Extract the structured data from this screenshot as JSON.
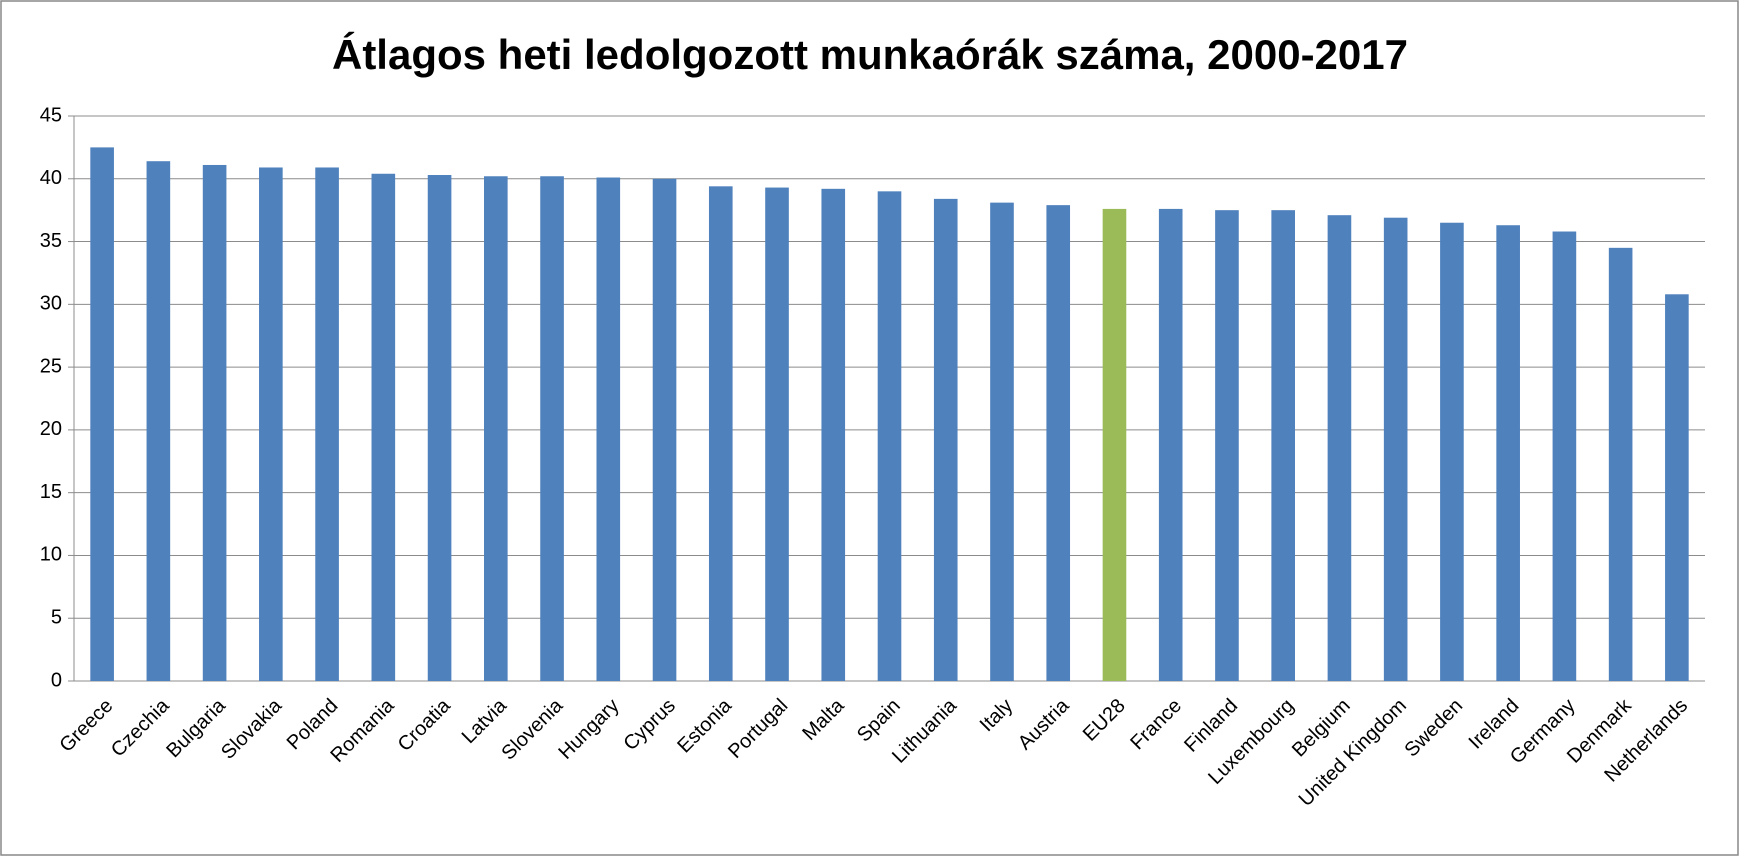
{
  "chart_data": {
    "type": "bar",
    "title": "Átlagos heti ledolgozott munkaórák száma, 2000-2017",
    "categories": [
      "Greece",
      "Czechia",
      "Bulgaria",
      "Slovakia",
      "Poland",
      "Romania",
      "Croatia",
      "Latvia",
      "Slovenia",
      "Hungary",
      "Cyprus",
      "Estonia",
      "Portugal",
      "Malta",
      "Spain",
      "Lithuania",
      "Italy",
      "Austria",
      "EU28",
      "France",
      "Finland",
      "Luxembourg",
      "Belgium",
      "United Kingdom",
      "Sweden",
      "Ireland",
      "Germany",
      "Denmark",
      "Netherlands"
    ],
    "values": [
      42.5,
      41.4,
      41.1,
      40.9,
      40.9,
      40.4,
      40.3,
      40.2,
      40.2,
      40.1,
      40.0,
      39.4,
      39.3,
      39.2,
      39.0,
      38.4,
      38.1,
      37.9,
      37.6,
      37.6,
      37.5,
      37.5,
      37.1,
      36.9,
      36.5,
      36.3,
      35.8,
      34.5,
      30.8
    ],
    "colors": [
      "#4f81bd",
      "#4f81bd",
      "#4f81bd",
      "#4f81bd",
      "#4f81bd",
      "#4f81bd",
      "#4f81bd",
      "#4f81bd",
      "#4f81bd",
      "#4f81bd",
      "#4f81bd",
      "#4f81bd",
      "#4f81bd",
      "#4f81bd",
      "#4f81bd",
      "#4f81bd",
      "#4f81bd",
      "#4f81bd",
      "#9bbb59",
      "#4f81bd",
      "#4f81bd",
      "#4f81bd",
      "#4f81bd",
      "#4f81bd",
      "#4f81bd",
      "#4f81bd",
      "#4f81bd",
      "#4f81bd",
      "#4f81bd"
    ],
    "ylim": [
      0,
      45
    ],
    "yticks": [
      0,
      5,
      10,
      15,
      20,
      25,
      30,
      35,
      40,
      45
    ],
    "grid": true
  }
}
